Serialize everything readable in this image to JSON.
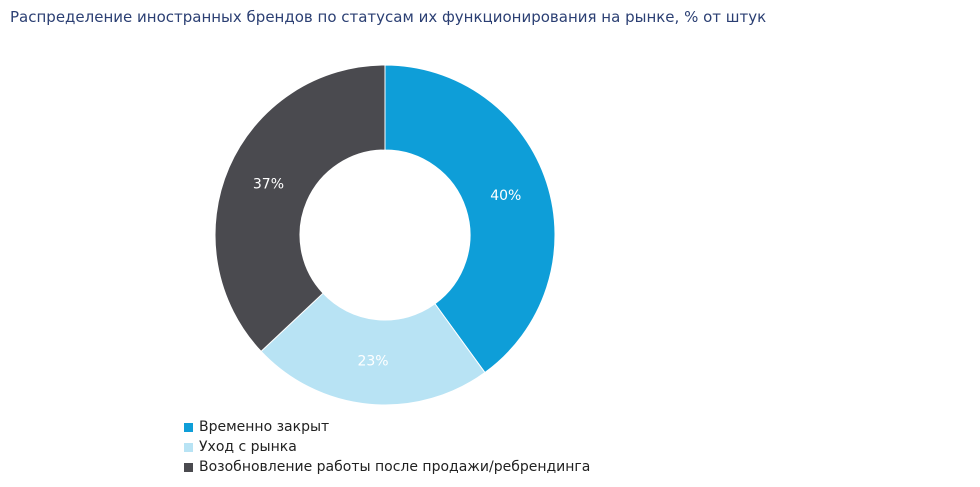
{
  "chart_data": {
    "type": "pie",
    "title": "Распределение иностранных брендов по статусам их функционирования на рынке, % от штук",
    "categories": [
      "Временно закрыт",
      "Уход с рынка",
      "Возобновление работы после продажи/ребрендинга"
    ],
    "values": [
      40,
      23,
      37
    ],
    "data_labels": [
      "40%",
      "23%",
      "37%"
    ],
    "colors": [
      "#0e9ed8",
      "#b8e3f4",
      "#4a4a4f"
    ],
    "label_colors": [
      "#ffffff",
      "#ffffff",
      "#ffffff"
    ],
    "donut": true,
    "legend_position": "bottom-left"
  }
}
